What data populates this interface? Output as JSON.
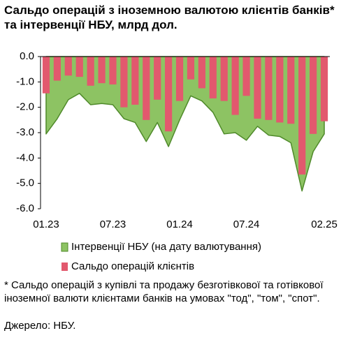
{
  "chart_data": {
    "type": "bar_area",
    "title": "Сальдо операцій з іноземною валютою клієнтів банків* та інтервенції НБУ, млрд дол.",
    "categories": [
      "01.23",
      null,
      null,
      null,
      null,
      null,
      "07.23",
      null,
      null,
      null,
      null,
      null,
      "01.24",
      null,
      null,
      null,
      null,
      null,
      "07.24",
      null,
      null,
      null,
      null,
      null,
      null,
      "02.25"
    ],
    "series": [
      {
        "name": "Інтервенції НБУ (на дату валютування)",
        "color": "#8dc363",
        "kind": "area",
        "values": [
          -3.05,
          -2.45,
          -1.7,
          -1.45,
          -1.9,
          -1.85,
          -1.9,
          -2.45,
          -2.6,
          -3.35,
          -2.6,
          -3.55,
          -2.5,
          -1.55,
          -1.75,
          -2.2,
          -3.05,
          -3.0,
          -3.3,
          -2.75,
          -3.1,
          -3.15,
          -3.4,
          -5.3,
          -3.75,
          -3.05
        ]
      },
      {
        "name": "Сальдо операцій клієнтів",
        "color": "#e2596e",
        "kind": "bar",
        "values": [
          -1.45,
          -0.95,
          -0.75,
          -0.8,
          -1.15,
          -1.05,
          -1.1,
          -2.0,
          -1.9,
          -2.5,
          -1.7,
          -2.95,
          -1.75,
          -0.9,
          -1.25,
          -1.65,
          -1.75,
          -2.3,
          -1.55,
          -2.45,
          -2.5,
          -2.6,
          -2.65,
          -4.65,
          -3.05,
          -2.55
        ]
      }
    ],
    "ylim": [
      -6,
      0
    ],
    "yticks": [
      {
        "value": 0,
        "label": "0.0"
      },
      {
        "value": -1,
        "label": "-1.0"
      },
      {
        "value": -2,
        "label": "-2.0"
      },
      {
        "value": -3,
        "label": "-3.0"
      },
      {
        "value": -4,
        "label": "-4.0"
      },
      {
        "value": -5,
        "label": "-5.0"
      },
      {
        "value": -6,
        "label": "-6.0"
      }
    ],
    "footnote": "* Сальдо операцій з купівлі та продажу безготівкової та готівкової іноземної валюти клієнтами банків на умовах \"тод\", \"том\", \"спот\".",
    "source": "Джерело: НБУ."
  }
}
